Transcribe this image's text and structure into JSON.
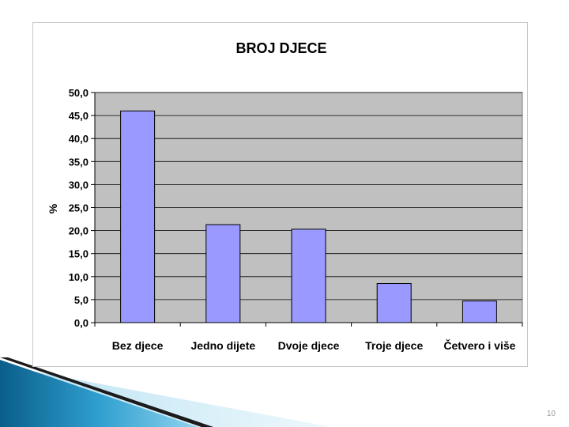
{
  "slide": {
    "page_number": "10"
  },
  "colors": {
    "bar_fill": "#9999FF",
    "bar_stroke": "#000000",
    "plot_background": "#C0C0C0",
    "gridline": "#000000"
  },
  "chart_data": {
    "type": "bar",
    "title": "BROJ DJECE",
    "xlabel": "",
    "ylabel": "%",
    "categories": [
      "Bez djece",
      "Jedno dijete",
      "Dvoje djece",
      "Troje djece",
      "Četvero i više"
    ],
    "values": [
      46.0,
      21.3,
      20.3,
      8.5,
      4.7
    ],
    "ylim": [
      0,
      50
    ],
    "yticks": [
      "0,0",
      "5,0",
      "10,0",
      "15,0",
      "20,0",
      "25,0",
      "30,0",
      "35,0",
      "40,0",
      "45,0",
      "50,0"
    ],
    "grid": true,
    "legend": "none"
  }
}
